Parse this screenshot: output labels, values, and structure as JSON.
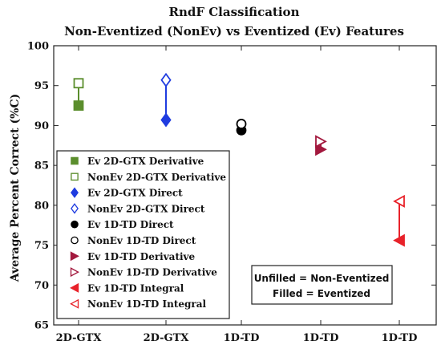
{
  "chart_data": {
    "type": "scatter",
    "title": "RndF Classification",
    "subtitle": "Non-Eventized (NonEv) vs Eventized (Ev) Features",
    "xlabel": "",
    "ylabel": "Average Percent Correct (%C)",
    "ylim": [
      65,
      100
    ],
    "yticks": [
      "65",
      "70",
      "75",
      "80",
      "85",
      "90",
      "95",
      "100"
    ],
    "categories": [
      "2D-GTX",
      "2D-GTX",
      "1D-TD",
      "1D-TD",
      "1D-TD"
    ],
    "grid": false,
    "legend_position": "left",
    "series": [
      {
        "name": "Ev 2D-GTX Derivative",
        "x": 0,
        "y": 92.5,
        "marker": "square",
        "filled": true,
        "color": "#5b8e2d"
      },
      {
        "name": "NonEv 2D-GTX Derivative",
        "x": 0,
        "y": 95.3,
        "marker": "square",
        "filled": false,
        "color": "#5b8e2d"
      },
      {
        "name": "Ev 2D-GTX Direct",
        "x": 1,
        "y": 90.7,
        "marker": "diamond",
        "filled": true,
        "color": "#1f3ce0"
      },
      {
        "name": "NonEv 2D-GTX Direct",
        "x": 1,
        "y": 95.7,
        "marker": "diamond",
        "filled": false,
        "color": "#1f3ce0"
      },
      {
        "name": "Ev 1D-TD Direct",
        "x": 2,
        "y": 89.4,
        "marker": "circle",
        "filled": true,
        "color": "#000000"
      },
      {
        "name": "NonEv 1D-TD Direct",
        "x": 2,
        "y": 90.2,
        "marker": "circle",
        "filled": false,
        "color": "#000000"
      },
      {
        "name": "Ev 1D-TD Derivative",
        "x": 3,
        "y": 87.0,
        "marker": "triangle-right",
        "filled": true,
        "color": "#a3193e"
      },
      {
        "name": "NonEv 1D-TD Derivative",
        "x": 3,
        "y": 88.0,
        "marker": "triangle-right",
        "filled": false,
        "color": "#a3193e"
      },
      {
        "name": "Ev 1D-TD Integral",
        "x": 4,
        "y": 75.6,
        "marker": "triangle-left",
        "filled": true,
        "color": "#e8222a"
      },
      {
        "name": "NonEv 1D-TD Integral",
        "x": 4,
        "y": 80.5,
        "marker": "triangle-left",
        "filled": false,
        "color": "#e8222a"
      }
    ],
    "annotation": [
      "Unfilled = Non-Eventized",
      "Filled = Eventized"
    ]
  }
}
